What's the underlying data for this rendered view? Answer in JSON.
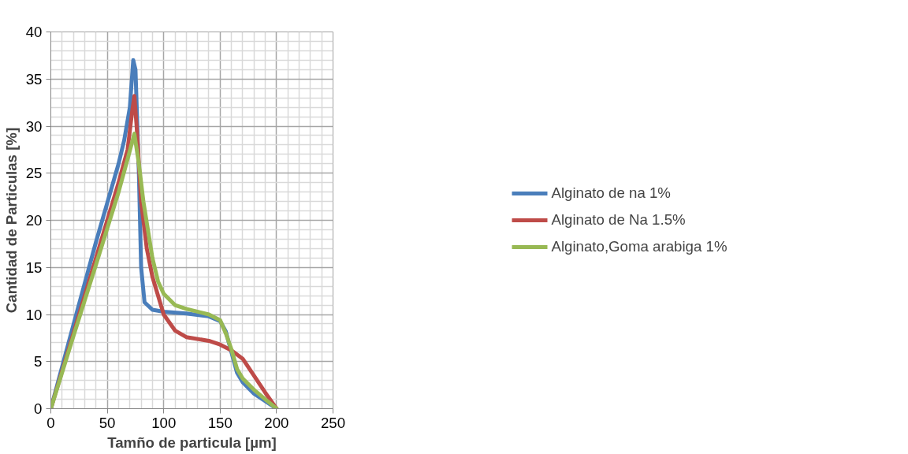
{
  "chart_data": {
    "type": "line",
    "xlabel": "Tamño de particula [µm]",
    "ylabel": "Cantidad de Particulas [%]",
    "xlim": [
      0,
      250
    ],
    "xticks": [
      0,
      50,
      100,
      150,
      200,
      250
    ],
    "ylim": [
      0,
      40
    ],
    "yticks": [
      0,
      5,
      10,
      15,
      20,
      25,
      30,
      35,
      40
    ],
    "grid": true,
    "legend": "right",
    "marker": "none",
    "line_style": "solid",
    "series": [
      {
        "name": "Alginato de na 1%",
        "color": "#4a7ebb",
        "x": [
          0,
          20,
          40,
          60,
          65,
          70,
          73,
          75,
          78,
          80,
          83,
          90,
          100,
          120,
          140,
          150,
          155,
          160,
          165,
          170,
          180,
          190,
          200
        ],
        "values": [
          0,
          8.9,
          17.7,
          26,
          28.5,
          32,
          37,
          36,
          25,
          15,
          11.3,
          10.5,
          10.3,
          10.1,
          9.8,
          9.3,
          8.2,
          6,
          3.8,
          2.8,
          1.6,
          0.8,
          0
        ]
      },
      {
        "name": "Alginato de Na 1.5%",
        "color": "#be4b48",
        "x": [
          0,
          20,
          40,
          60,
          68,
          72,
          74,
          76,
          80,
          85,
          90,
          100,
          110,
          120,
          140,
          150,
          160,
          170,
          180,
          190,
          200
        ],
        "values": [
          0,
          8,
          16,
          24,
          27.5,
          31.5,
          33.2,
          30,
          22,
          17,
          14,
          10,
          8.3,
          7.6,
          7.2,
          6.8,
          6.2,
          5.3,
          3.5,
          1.7,
          0
        ]
      },
      {
        "name": "Alginato,Goma arabiga 1%",
        "color": "#98b954",
        "x": [
          0,
          20,
          40,
          60,
          68,
          74,
          78,
          82,
          90,
          95,
          100,
          110,
          120,
          140,
          150,
          155,
          160,
          165,
          170,
          180,
          190,
          200
        ],
        "values": [
          0,
          7.7,
          15.3,
          23,
          26.5,
          29.2,
          26,
          22,
          16,
          13.5,
          12.2,
          11,
          10.6,
          10,
          9.4,
          8,
          6.3,
          4.2,
          3.2,
          2,
          1,
          0
        ]
      }
    ]
  }
}
